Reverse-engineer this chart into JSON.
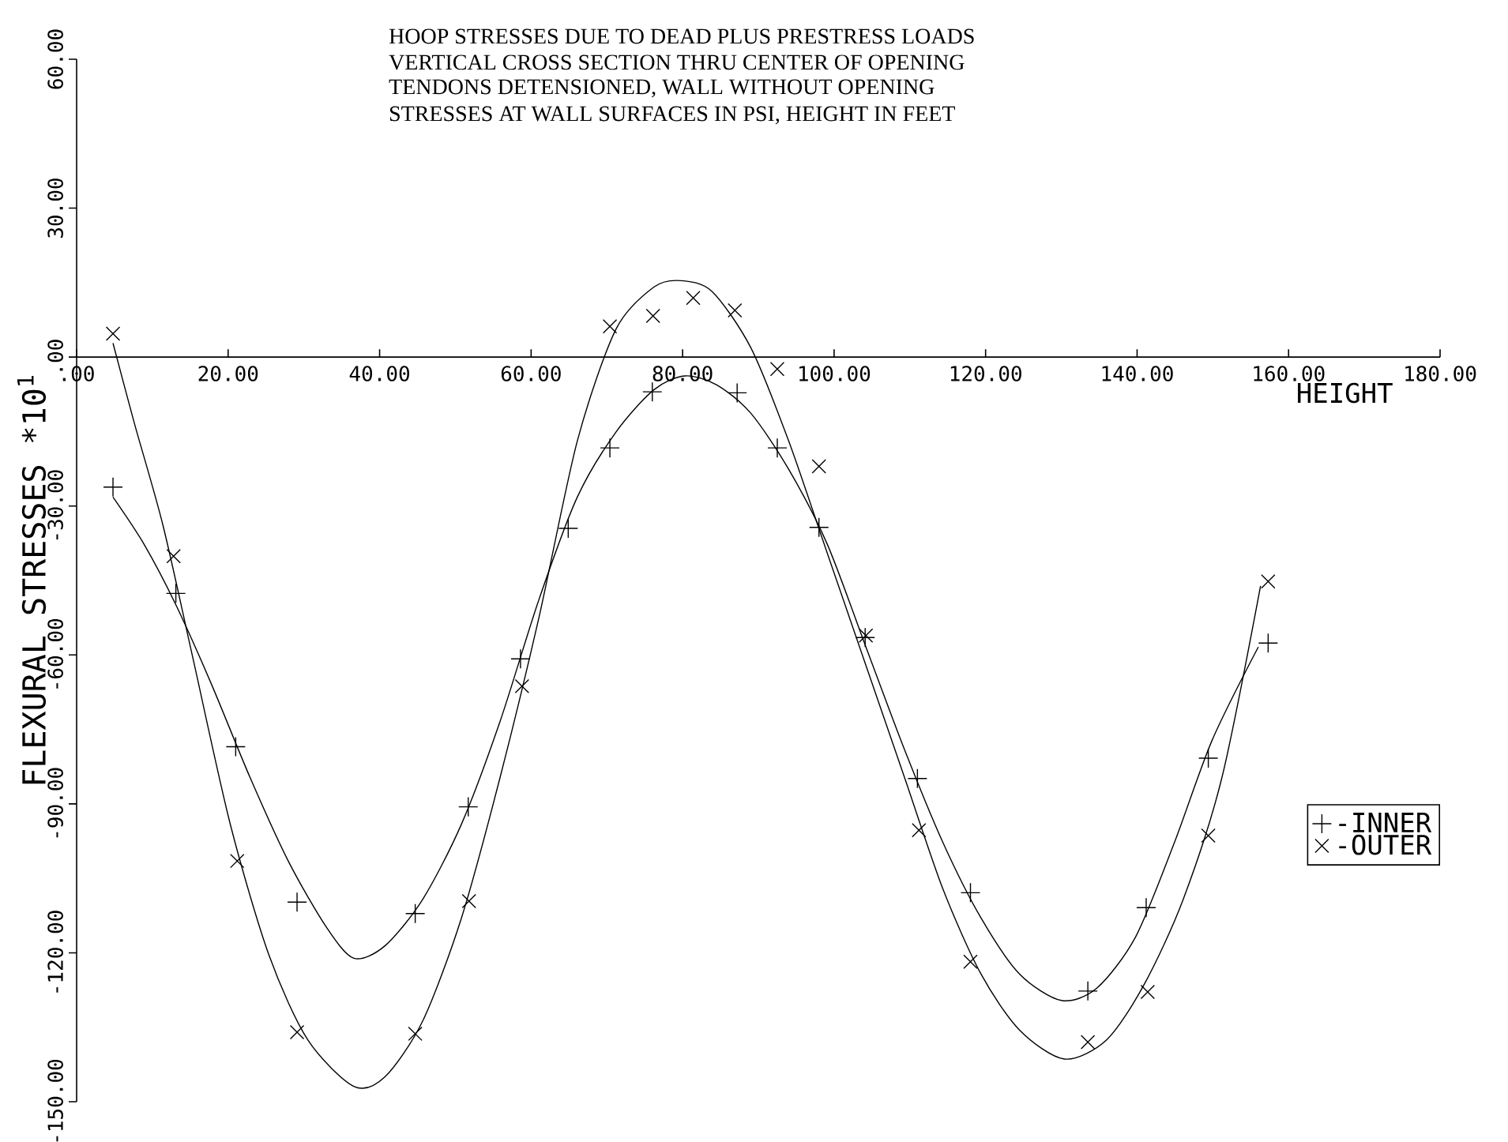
{
  "chart_data": {
    "type": "scatter",
    "title": "HOOP STRESSES DUE TO DEAD PLUS PRESTRESS LOADS",
    "annotations": [
      "VERTICAL CROSS SECTION THRU CENTER OF OPENING",
      "TENDONS DETENSIONED, WALL WITHOUT OPENING",
      "STRESSES AT WALL SURFACES IN PSI, HEIGHT IN FEET"
    ],
    "xlabel": "HEIGHT",
    "ylabel": "FLEXURAL STRESSES *10$^{1}$",
    "xlim": [
      0,
      180
    ],
    "ylim": [
      -150,
      60
    ],
    "xticks": [
      {
        "value": 0,
        "label": ".00"
      },
      {
        "value": 20,
        "label": "20.00"
      },
      {
        "value": 40,
        "label": "40.00"
      },
      {
        "value": 60,
        "label": "60.00"
      },
      {
        "value": 80,
        "label": "80.00"
      },
      {
        "value": 100,
        "label": "100.00"
      },
      {
        "value": 120,
        "label": "120.00"
      },
      {
        "value": 140,
        "label": "140.00"
      },
      {
        "value": 160,
        "label": "160.00"
      },
      {
        "value": 180,
        "label": "180.00"
      }
    ],
    "yticks": [
      {
        "value": -150,
        "label": "-150.00"
      },
      {
        "value": -120,
        "label": "-120.00"
      },
      {
        "value": -90,
        "label": "-90.00"
      },
      {
        "value": -60,
        "label": "-60.00"
      },
      {
        "value": -30,
        "label": "-30.00"
      },
      {
        "value": 0,
        "label": ".00"
      },
      {
        "value": 30,
        "label": "30.00"
      },
      {
        "value": 60,
        "label": "60.00"
      }
    ],
    "grid": false,
    "legend": "right",
    "series": [
      {
        "name": "-INNER",
        "marker": "cross",
        "color": "#000000",
        "x": [
          4.8,
          13.1,
          21.0,
          29.1,
          44.7,
          51.7,
          58.6,
          64.9,
          70.4,
          76.0,
          87.2,
          92.5,
          98.0,
          104.1,
          111.0,
          118.0,
          133.5,
          141.2,
          149.4,
          157.3
        ],
        "values": [
          -26.2,
          -47.6,
          -78.5,
          -109.8,
          -112.1,
          -90.6,
          -60.8,
          -34.5,
          -18.3,
          -7.0,
          -7.2,
          -18.3,
          -34.3,
          -56.5,
          -84.9,
          -107.9,
          -127.7,
          -110.9,
          -80.8,
          -57.6
        ]
      },
      {
        "name": "-OUTER",
        "marker": "cross",
        "color": "#000000",
        "x": [
          4.8,
          12.8,
          21.2,
          29.1,
          44.7,
          51.8,
          58.8,
          70.4,
          76.1,
          81.4,
          86.9,
          92.5,
          98.0,
          104.2,
          111.2,
          118.0,
          133.5,
          141.4,
          149.4,
          157.3
        ],
        "values": [
          4.7,
          -40.1,
          -101.5,
          -136.0,
          -136.3,
          -109.6,
          -66.3,
          6.2,
          8.3,
          11.9,
          9.4,
          -2.4,
          -22.0,
          -56.1,
          -95.3,
          -121.8,
          -138.0,
          -127.9,
          -96.4,
          -45.2
        ]
      },
      {
        "type": "line",
        "marker": "none",
        "line_style": "solid",
        "color": "#000000",
        "x": [
          4.8,
          8.9,
          13.1,
          17.8,
          22.9,
          28.0,
          33.0,
          36.6,
          40.7,
          45.7,
          50.8,
          55.9,
          61.0,
          66.1,
          71.2,
          76.2,
          80.3,
          84.5,
          89.0,
          94.0,
          99.1,
          104.2,
          109.3,
          114.4,
          119.4,
          124.5,
          130.0,
          134.7,
          139.8,
          144.9,
          149.9,
          156.0
        ],
        "values": [
          -28.2,
          -37.7,
          -49.9,
          -65.9,
          -84.7,
          -101.7,
          -114.9,
          -121.1,
          -118.6,
          -109.2,
          -94.1,
          -73.4,
          -49.0,
          -28.2,
          -15.1,
          -6.6,
          -3.8,
          -5.6,
          -11.3,
          -22.6,
          -37.7,
          -58.4,
          -79.1,
          -97.9,
          -113.0,
          -124.3,
          -129.6,
          -127.1,
          -116.8,
          -97.9,
          -77.2,
          -58.4
        ]
      },
      {
        "type": "line",
        "marker": "none",
        "line_style": "solid",
        "color": "#000000",
        "x": [
          4.8,
          7.6,
          11.4,
          15.3,
          20.3,
          25.4,
          30.5,
          36.6,
          40.7,
          45.7,
          50.8,
          55.9,
          61.0,
          66.1,
          71.2,
          76.2,
          79.8,
          83.9,
          89.0,
          94.0,
          99.1,
          104.2,
          109.3,
          114.4,
          119.4,
          124.5,
          130.4,
          136.0,
          141.0,
          146.1,
          151.2,
          156.3
        ],
        "values": [
          2.8,
          -13.2,
          -33.9,
          -60.3,
          -94.2,
          -120.5,
          -137.5,
          -146.9,
          -145.0,
          -133.7,
          -113.0,
          -84.7,
          -52.7,
          -16.9,
          5.6,
          14.1,
          15.4,
          13.2,
          1.9,
          -16.9,
          -39.5,
          -62.1,
          -84.7,
          -107.3,
          -124.3,
          -135.6,
          -141.4,
          -137.5,
          -126.2,
          -109.2,
          -84.7,
          -46.1
        ]
      }
    ]
  }
}
